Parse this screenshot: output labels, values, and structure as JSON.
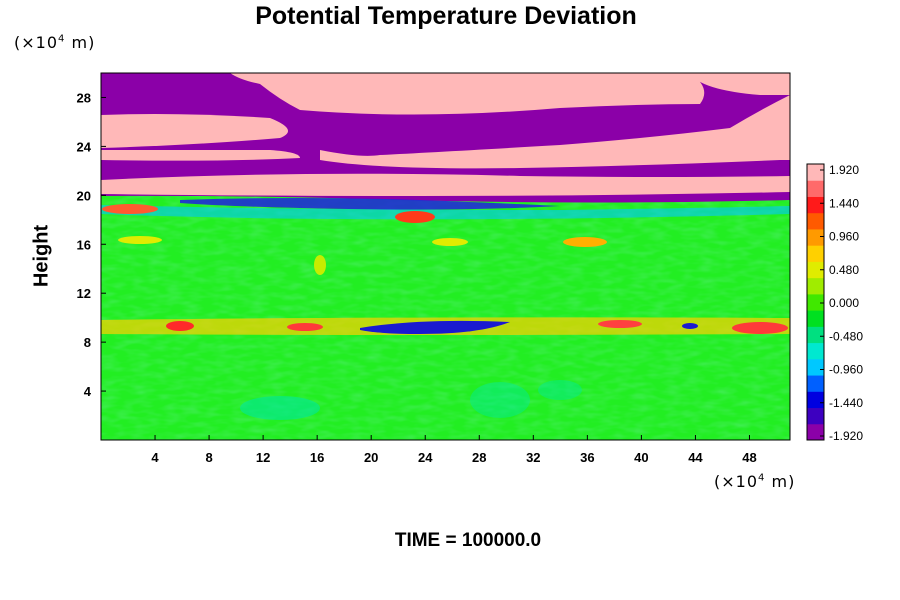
{
  "chart_data": {
    "type": "heatmap",
    "title": "Potential Temperature Deviation",
    "ylabel": "Height",
    "y_unit": "(×10⁴ m)",
    "x_unit": "(×10⁴ m)",
    "footer": "TIME = 100000.0",
    "x_ticks": [
      "4",
      "8",
      "12",
      "16",
      "20",
      "24",
      "28",
      "32",
      "36",
      "40",
      "44",
      "48"
    ],
    "y_ticks": [
      "4",
      "8",
      "12",
      "16",
      "20",
      "24",
      "28"
    ],
    "xlim": [
      0,
      51
    ],
    "ylim": [
      0,
      30
    ],
    "colorbar_ticks": [
      "1.920",
      "1.440",
      "0.960",
      "0.480",
      "0.000",
      "-0.480",
      "-0.960",
      "-1.440",
      "-1.920"
    ],
    "colorbar_range": [
      -1.92,
      1.92
    ],
    "colormap": [
      "#8b00a8",
      "#3d00c0",
      "#0000e0",
      "#0060ff",
      "#00c8ff",
      "#00e8d0",
      "#00e080",
      "#00e020",
      "#40e800",
      "#a0ec00",
      "#e0ec00",
      "#ffd000",
      "#ff9a00",
      "#ff5a00",
      "#ff1a1a",
      "#ff6a6a",
      "#ffb8b8"
    ],
    "field_description_colors": {
      "background": "#22ee22",
      "upper_purple": "#8b00a8",
      "upper_pink": "#ffb8b8"
    }
  }
}
